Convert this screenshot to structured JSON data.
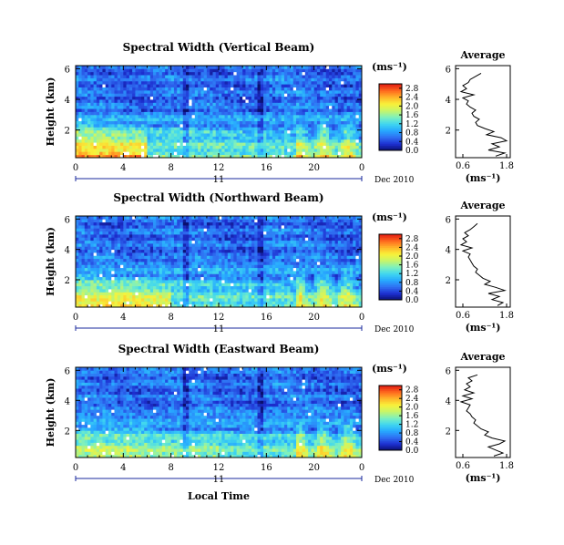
{
  "chart_data": [
    {
      "type": "heatmap",
      "title": "Spectral Width (Vertical Beam)",
      "ylabel": "Height (km)",
      "x_ticks": [
        "0",
        "4",
        "8",
        "12",
        "16",
        "20",
        "0"
      ],
      "y_ticks": [
        "2",
        "4",
        "6"
      ],
      "xlim": [
        0,
        24
      ],
      "ylim": [
        0.2,
        6.2
      ],
      "date_day": "11",
      "date_label": "Dec 2010",
      "colorbar": {
        "unit": "(ms⁻¹)",
        "ticks": [
          "0.0",
          "0.4",
          "0.8",
          "1.2",
          "1.6",
          "2.0",
          "2.4",
          "2.8"
        ],
        "range": [
          0.0,
          3.0
        ]
      },
      "profile": {
        "title": "Average",
        "xlabel": "(ms⁻¹)",
        "x_ticks": [
          "0.6",
          "1.8"
        ],
        "y_ticks": [
          "2",
          "4",
          "6"
        ],
        "xlim": [
          0.4,
          1.9
        ],
        "ylim": [
          0.2,
          6.2
        ],
        "height_km": [
          0.3,
          0.5,
          0.7,
          0.9,
          1.1,
          1.3,
          1.5,
          1.7,
          1.9,
          2.1,
          2.3,
          2.5,
          2.7,
          2.9,
          3.1,
          3.3,
          3.5,
          3.7,
          3.9,
          4.1,
          4.3,
          4.5,
          4.7,
          4.9,
          5.1,
          5.3,
          5.5,
          5.7
        ],
        "width_ms": [
          1.5,
          1.75,
          1.3,
          1.6,
          1.4,
          1.8,
          1.65,
          1.25,
          1.45,
          1.2,
          1.0,
          0.95,
          1.05,
          0.9,
          0.85,
          0.95,
          0.8,
          0.7,
          0.75,
          0.6,
          0.9,
          0.55,
          0.7,
          0.6,
          0.75,
          0.8,
          0.95,
          1.1
        ]
      }
    },
    {
      "type": "heatmap",
      "title": "Spectral Width (Northward Beam)",
      "ylabel": "Height (km)",
      "x_ticks": [
        "0",
        "4",
        "8",
        "12",
        "16",
        "20",
        "0"
      ],
      "y_ticks": [
        "2",
        "4",
        "6"
      ],
      "xlim": [
        0,
        24
      ],
      "ylim": [
        0.2,
        6.2
      ],
      "date_day": "11",
      "date_label": "Dec 2010",
      "colorbar": {
        "unit": "(ms⁻¹)",
        "ticks": [
          "0.0",
          "0.4",
          "0.8",
          "1.2",
          "1.6",
          "2.0",
          "2.4",
          "2.8"
        ],
        "range": [
          0.0,
          3.0
        ]
      },
      "profile": {
        "title": "Average",
        "xlabel": "(ms⁻¹)",
        "x_ticks": [
          "0.6",
          "1.8"
        ],
        "y_ticks": [
          "2",
          "4",
          "6"
        ],
        "xlim": [
          0.4,
          1.9
        ],
        "ylim": [
          0.2,
          6.2
        ],
        "height_km": [
          0.3,
          0.5,
          0.7,
          0.9,
          1.1,
          1.3,
          1.5,
          1.7,
          1.9,
          2.1,
          2.3,
          2.5,
          2.7,
          2.9,
          3.1,
          3.3,
          3.5,
          3.7,
          3.9,
          4.1,
          4.3,
          4.5,
          4.7,
          4.9,
          5.1,
          5.3,
          5.5,
          5.7
        ],
        "width_ms": [
          1.55,
          1.7,
          1.4,
          1.6,
          1.3,
          1.75,
          1.5,
          1.2,
          1.35,
          1.15,
          1.05,
          0.95,
          1.0,
          0.9,
          0.85,
          0.8,
          0.75,
          0.8,
          0.6,
          0.85,
          0.55,
          0.7,
          0.6,
          0.75,
          0.65,
          0.8,
          0.9,
          1.0
        ]
      }
    },
    {
      "type": "heatmap",
      "title": "Spectral Width (Eastward Beam)",
      "ylabel": "Height (km)",
      "xlabel": "Local Time",
      "x_ticks": [
        "0",
        "4",
        "8",
        "12",
        "16",
        "20",
        "0"
      ],
      "y_ticks": [
        "2",
        "4",
        "6"
      ],
      "xlim": [
        0,
        24
      ],
      "ylim": [
        0.2,
        6.2
      ],
      "date_day": "11",
      "date_label": "Dec 2010",
      "colorbar": {
        "unit": "(ms⁻¹)",
        "ticks": [
          "0.0",
          "0.4",
          "0.8",
          "1.2",
          "1.6",
          "2.0",
          "2.4",
          "2.8"
        ],
        "range": [
          0.0,
          3.0
        ]
      },
      "profile": {
        "title": "Average",
        "xlabel": "(ms⁻¹)",
        "x_ticks": [
          "0.6",
          "1.8"
        ],
        "y_ticks": [
          "2",
          "4",
          "6"
        ],
        "xlim": [
          0.4,
          1.9
        ],
        "ylim": [
          0.2,
          6.2
        ],
        "height_km": [
          0.3,
          0.5,
          0.7,
          0.9,
          1.1,
          1.3,
          1.5,
          1.7,
          1.9,
          2.1,
          2.3,
          2.5,
          2.7,
          2.9,
          3.1,
          3.3,
          3.5,
          3.7,
          3.9,
          4.1,
          4.3,
          4.5,
          4.7,
          4.9,
          5.1,
          5.3,
          5.5,
          5.7
        ],
        "width_ms": [
          1.45,
          1.7,
          1.5,
          1.3,
          1.6,
          1.75,
          1.4,
          1.2,
          1.3,
          1.1,
          1.0,
          0.9,
          0.95,
          0.85,
          0.8,
          0.7,
          0.75,
          0.8,
          0.55,
          0.85,
          0.6,
          0.9,
          0.65,
          0.8,
          0.7,
          0.85,
          0.75,
          1.0
        ]
      }
    }
  ],
  "colors": {
    "colormap": [
      "#0a0f6e",
      "#1d2fd0",
      "#2f6ff2",
      "#27a8ff",
      "#3fd6f0",
      "#7cf0c0",
      "#c6f56a",
      "#f8f23a",
      "#ffb62a",
      "#ff6a1e",
      "#e21d12"
    ],
    "gap": "#ffffff",
    "axis": "#000000",
    "time_bar": "#1a2a9c"
  }
}
